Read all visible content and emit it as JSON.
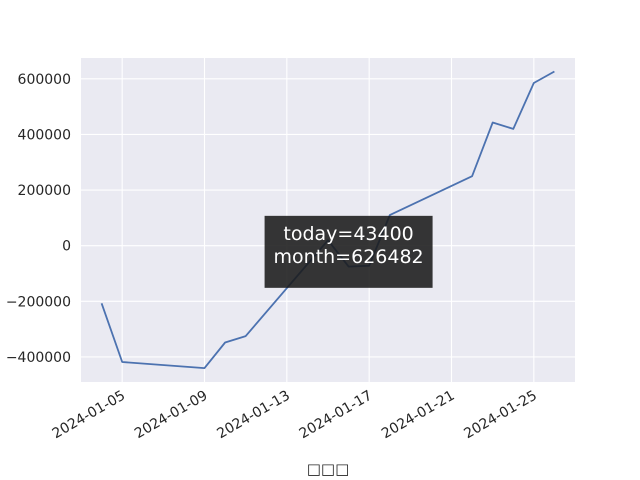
{
  "chart_data": {
    "type": "line",
    "xlabel": "□□□",
    "ylabel": "",
    "title": "",
    "grid": true,
    "style": {
      "background": "#EAEAF2",
      "grid_color": "#ffffff",
      "line_color": "#4C72B0"
    },
    "xlim": [
      "2024-01-03",
      "2024-01-27"
    ],
    "ylim": [
      -490000,
      675000
    ],
    "x_ticks": [
      "2024-01-05",
      "2024-01-09",
      "2024-01-13",
      "2024-01-17",
      "2024-01-21",
      "2024-01-25"
    ],
    "y_ticks": [
      -400000,
      -200000,
      0,
      200000,
      400000,
      600000
    ],
    "y_tick_labels": [
      "−400000",
      "−200000",
      "0",
      "200000",
      "400000",
      "600000"
    ],
    "series": [
      {
        "x": [
          "2024-01-04",
          "2024-01-05",
          "2024-01-09",
          "2024-01-10",
          "2024-01-11",
          "2024-01-15",
          "2024-01-16",
          "2024-01-17",
          "2024-01-18",
          "2024-01-22",
          "2024-01-23",
          "2024-01-24",
          "2024-01-25",
          "2024-01-26"
        ],
        "values": [
          -207000,
          -418000,
          -440000,
          -348000,
          -325000,
          20000,
          -75000,
          -72000,
          110000,
          250000,
          443000,
          420000,
          585000,
          626482
        ]
      }
    ],
    "annotations": [
      {
        "lines": [
          "today=43400",
          "month=626482"
        ],
        "x": "2024-01-16",
        "y": -22000,
        "style": "dark-box"
      }
    ]
  }
}
